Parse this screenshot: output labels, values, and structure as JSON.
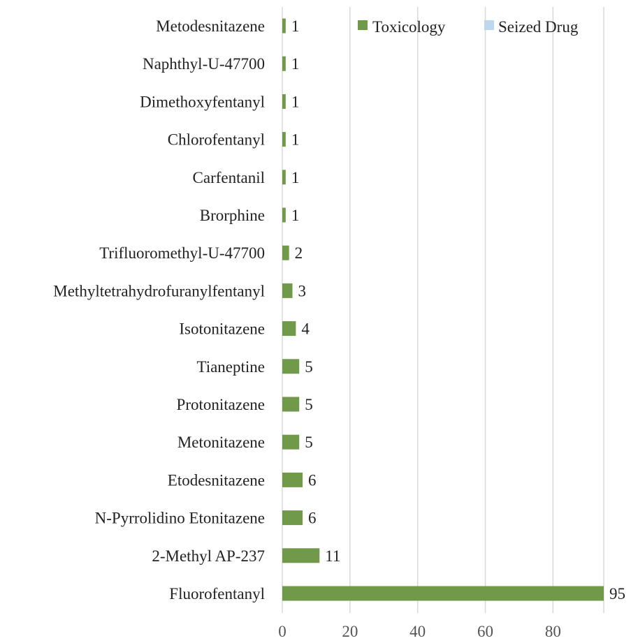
{
  "chart_data": {
    "type": "bar",
    "orientation": "horizontal",
    "categories": [
      "Metodesnitazene",
      "Naphthyl-U-47700",
      "Dimethoxyfentanyl",
      "Chlorofentanyl",
      "Carfentanil",
      "Brorphine",
      "Trifluoromethyl-U-47700",
      "Methyltetrahydrofuranylfentanyl",
      "Isotonitazene",
      "Tianeptine",
      "Protonitazene",
      "Metonitazene",
      "Etodesnitazene",
      "N-Pyrrolidino Etonitazene",
      "2-Methyl AP-237",
      "Fluorofentanyl"
    ],
    "series": [
      {
        "name": "Toxicology",
        "color": "#70994a",
        "values": [
          1,
          1,
          1,
          1,
          1,
          1,
          2,
          3,
          4,
          5,
          5,
          5,
          6,
          6,
          11,
          95
        ]
      },
      {
        "name": "Seized Drug",
        "color": "#bdd7ee",
        "values": [
          0,
          0,
          0,
          0,
          0,
          0,
          0,
          0,
          0,
          0,
          0,
          0,
          0,
          0,
          0,
          0
        ]
      }
    ],
    "data_labels": [
      "1",
      "1",
      "1",
      "1",
      "1",
      "1",
      "2",
      "3",
      "4",
      "5",
      "5",
      "5",
      "6",
      "6",
      "11",
      "95"
    ],
    "x_ticks": [
      "0",
      "20",
      "40",
      "60",
      "80"
    ],
    "xlim": [
      0,
      95
    ],
    "grid": true,
    "legend_position": "top-right",
    "stacked": true
  }
}
